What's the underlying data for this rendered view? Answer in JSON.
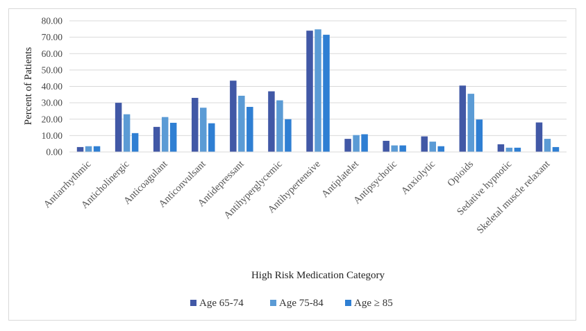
{
  "chart_data": {
    "type": "bar",
    "title": "",
    "xlabel": "High Risk Medication Category",
    "ylabel": "Percent of Patients",
    "ylim": [
      0,
      80
    ],
    "yticks": [
      "0.00",
      "10.00",
      "20.00",
      "30.00",
      "40.00",
      "50.00",
      "60.00",
      "70.00",
      "80.00"
    ],
    "grid": true,
    "legend_position": "bottom",
    "categories": [
      "Antiarrhythmic",
      "Anticholinergic",
      "Anticoagulant",
      "Anticonvulsant",
      "Antidepressant",
      "Antihyperglycemic",
      "Antihypertensive",
      "Antiplatelet",
      "Antipsychotic",
      "Anxiolytic",
      "Opioids",
      "Sedative hypnotic",
      "Skeletal muscle relaxant"
    ],
    "series": [
      {
        "name": "Age 65-74",
        "color": "#4158a6",
        "values": [
          3.0,
          30.0,
          15.3,
          33.0,
          43.5,
          37.0,
          74.0,
          8.0,
          6.8,
          9.5,
          40.5,
          4.7,
          18.0
        ]
      },
      {
        "name": "Age 75-84",
        "color": "#5b9bd5",
        "values": [
          3.5,
          23.0,
          21.3,
          27.0,
          34.3,
          31.5,
          74.8,
          10.3,
          4.0,
          6.3,
          35.5,
          2.6,
          8.0
        ]
      },
      {
        "name": "Age ≥ 85",
        "color": "#2f7fd3",
        "values": [
          3.5,
          11.5,
          17.8,
          17.5,
          27.5,
          20.0,
          71.5,
          10.8,
          4.0,
          3.5,
          19.8,
          2.6,
          3.0
        ]
      }
    ]
  }
}
